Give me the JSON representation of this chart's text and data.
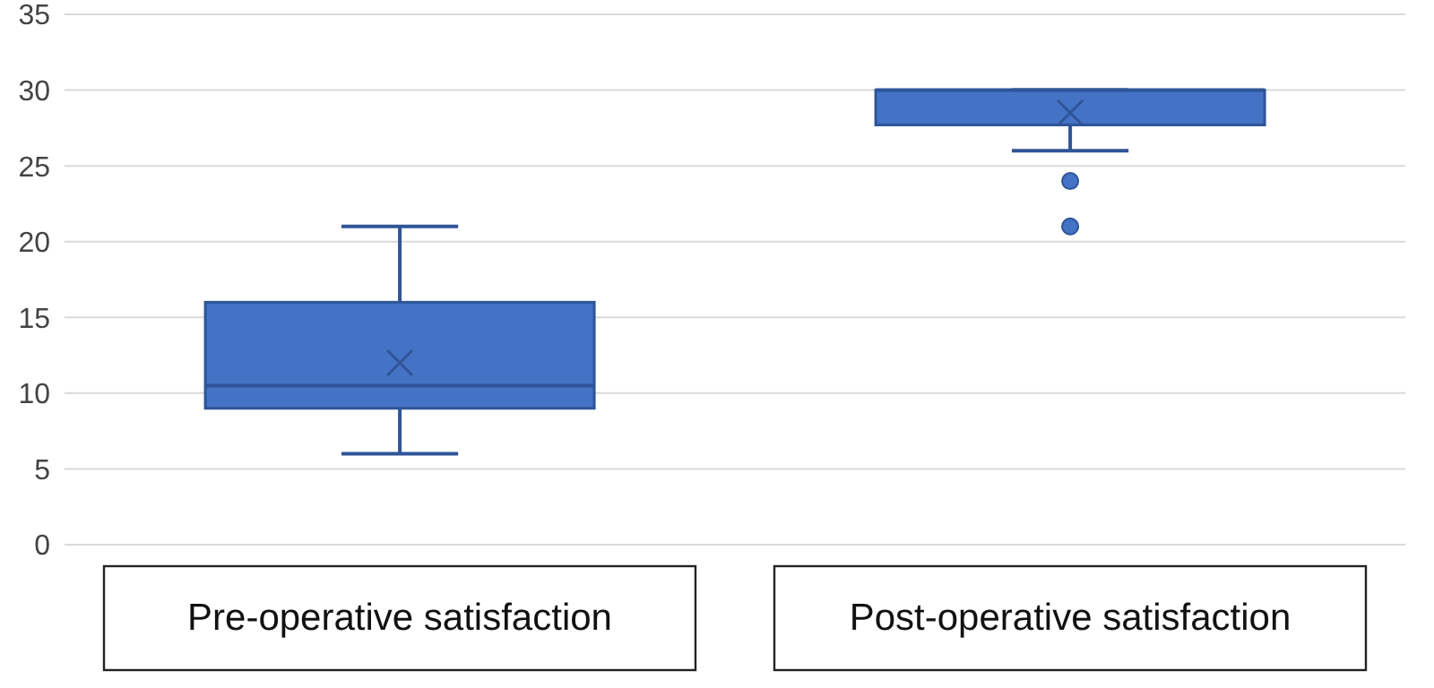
{
  "chart_data": {
    "type": "box",
    "categories": [
      "Pre-operative satisfaction",
      "Post-operative satisfaction"
    ],
    "boxes": [
      {
        "low": 6,
        "q1": 9,
        "median": 10.5,
        "q3": 16,
        "high": 21,
        "mean": 12
      },
      {
        "low": 26,
        "q1": 27.7,
        "median": 30,
        "q3": 30,
        "high": 30,
        "mean": 28.5,
        "outliers": [
          24,
          21
        ]
      }
    ],
    "color": "#4472c4",
    "ylim": [
      0,
      35
    ],
    "yticks": [
      0,
      5,
      10,
      15,
      20,
      25,
      30,
      35
    ],
    "grid": "y",
    "legend": false
  }
}
